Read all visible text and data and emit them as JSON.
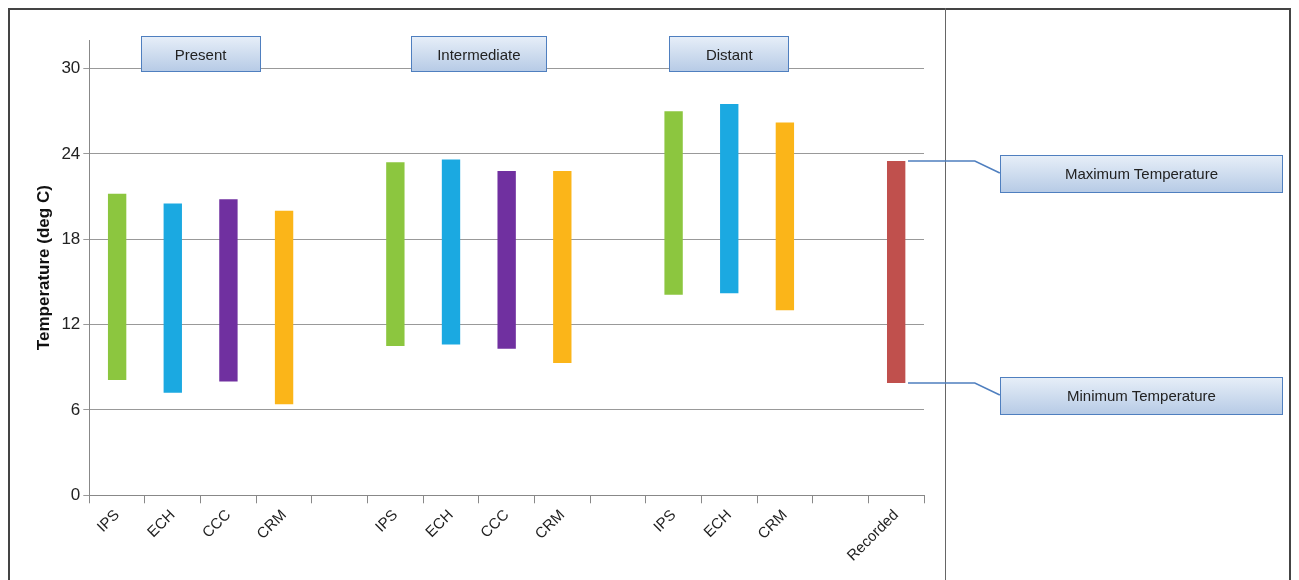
{
  "chart_data": {
    "type": "bar",
    "ylabel": "Temperature (deg C)",
    "categories": [
      "IPS",
      "ECH",
      "CCC",
      "CRM",
      null,
      "IPS",
      "ECH",
      "CCC",
      "CRM",
      null,
      "IPS",
      "ECH",
      "CRM",
      null,
      "Recorded"
    ],
    "base": [
      8.1,
      7.2,
      8.0,
      6.4,
      null,
      10.5,
      10.6,
      10.3,
      9.3,
      null,
      14.1,
      14.2,
      13.0,
      null,
      7.9
    ],
    "values": [
      13.1,
      13.3,
      12.8,
      13.6,
      null,
      12.9,
      13.0,
      12.5,
      13.5,
      null,
      12.9,
      13.3,
      13.2,
      null,
      15.6
    ],
    "colors": [
      "#8cc63f",
      "#1ba9e1",
      "#7030a0",
      "#fbb519",
      null,
      "#8cc63f",
      "#1ba9e1",
      "#7030a0",
      "#fbb519",
      null,
      "#8cc63f",
      "#1ba9e1",
      "#fbb519",
      null,
      "#c0504d"
    ],
    "ylim": [
      0,
      32
    ],
    "yticks": [
      0,
      6,
      12,
      18,
      24,
      30
    ],
    "grid": "y",
    "legend": false,
    "annotations": [
      "Present",
      "Intermediate",
      "Distant",
      "Maximum Temperature",
      "Minimum Temperature"
    ]
  }
}
